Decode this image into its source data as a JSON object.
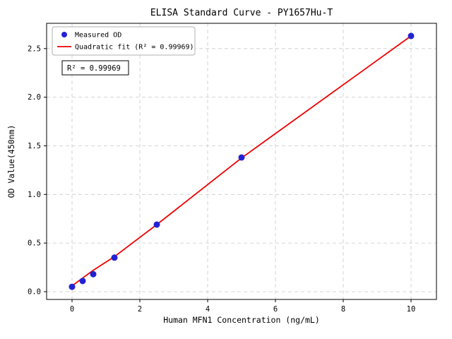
{
  "figure": {
    "background": "#ffffff",
    "axes_edge_color": "#000000",
    "grid_color": "#c9c9c9"
  },
  "chart_data": {
    "type": "scatter",
    "title": "ELISA Standard Curve - PY1657Hu-T",
    "xlabel": "Human MFN1 Concentration (ng/mL)",
    "ylabel": "OD Value(450nm)",
    "xlim": [
      -0.75,
      10.75
    ],
    "ylim": [
      -0.08,
      2.76
    ],
    "xtick_values": [
      0,
      2,
      4,
      6,
      8,
      10
    ],
    "xtick_labels": [
      "0",
      "2",
      "4",
      "6",
      "8",
      "10"
    ],
    "ytick_values": [
      0.0,
      0.5,
      1.0,
      1.5,
      2.0,
      2.5
    ],
    "ytick_labels": [
      "0.0",
      "0.5",
      "1.0",
      "1.5",
      "2.0",
      "2.5"
    ],
    "grid": true,
    "grid_style": "dashed",
    "legend_position": "upper-left",
    "legend_entries": [
      "Measured OD",
      "Quadratic fit (R² = 0.99969)"
    ],
    "annotation": "R² = 0.99969",
    "series": [
      {
        "name": "Measured OD",
        "type": "scatter",
        "marker": "circle",
        "color": "#2222d5",
        "x": [
          0,
          0.313,
          0.625,
          1.25,
          2.5,
          5,
          10
        ],
        "y": [
          0.05,
          0.11,
          0.18,
          0.35,
          0.69,
          1.38,
          2.63
        ]
      },
      {
        "name": "Quadratic fit (R² = 0.99969)",
        "type": "line",
        "color": "#ee0000",
        "x": [
          0,
          0.313,
          0.625,
          1.25,
          2.5,
          5,
          10
        ],
        "y": [
          0.06,
          0.14,
          0.22,
          0.36,
          0.69,
          1.375,
          2.63
        ]
      }
    ]
  }
}
